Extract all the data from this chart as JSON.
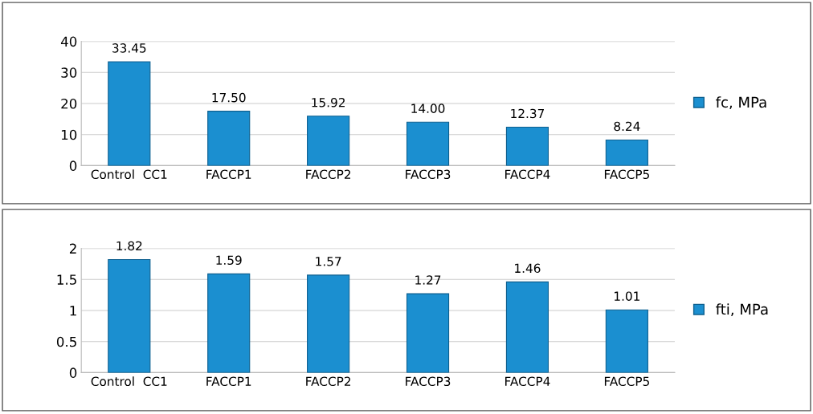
{
  "chart_data": [
    {
      "type": "bar",
      "categories": [
        "Control  CC1",
        "FACCP1",
        "FACCP2",
        "FACCP3",
        "FACCP4",
        "FACCP5"
      ],
      "series": [
        {
          "name": "fc, MPa",
          "color": "#1b8fd0",
          "values": [
            33.45,
            17.5,
            15.92,
            14.0,
            12.37,
            8.24
          ],
          "value_labels": [
            "33.45",
            "17.50",
            "15.92",
            "14.00",
            "12.37",
            "8.24"
          ]
        }
      ],
      "ylim": [
        0,
        40
      ],
      "yticks": [
        0,
        10,
        20,
        30,
        40
      ],
      "grid": "y",
      "legend": "right"
    },
    {
      "type": "bar",
      "categories": [
        "Control  CC1",
        "FACCP1",
        "FACCP2",
        "FACCP3",
        "FACCP4",
        "FACCP5"
      ],
      "series": [
        {
          "name": "fti, MPa",
          "color": "#1b8fd0",
          "values": [
            1.82,
            1.59,
            1.57,
            1.27,
            1.46,
            1.01
          ],
          "value_labels": [
            "1.82",
            "1.59",
            "1.57",
            "1.27",
            "1.46",
            "1.01"
          ]
        }
      ],
      "ylim": [
        0,
        2
      ],
      "yticks": [
        0,
        0.5,
        1,
        1.5,
        2
      ],
      "grid": "y",
      "legend": "right"
    }
  ]
}
